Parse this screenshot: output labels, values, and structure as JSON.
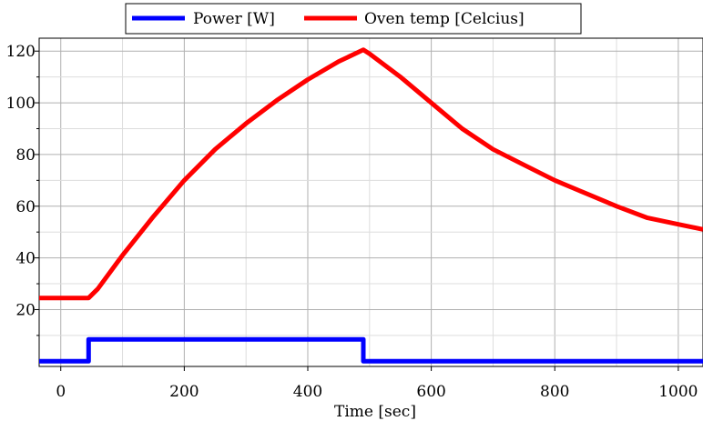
{
  "chart_data": {
    "type": "line",
    "title": "",
    "xlabel": "Time [sec]",
    "ylabel": "",
    "xlim": [
      -35,
      1040
    ],
    "ylim": [
      -2,
      125
    ],
    "xticks": [
      0,
      200,
      400,
      600,
      800,
      1000
    ],
    "yticks": [
      20,
      40,
      60,
      80,
      100,
      120
    ],
    "xtick_labels": [
      "0",
      "200",
      "400",
      "600",
      "800",
      "1000"
    ],
    "ytick_labels": [
      "20",
      "40",
      "60",
      "80",
      "100",
      "120"
    ],
    "grid": true,
    "legend_position": "top-center",
    "series": [
      {
        "name": "Power [W]",
        "color": "#0000ff",
        "x": [
          -35,
          45,
          45,
          490,
          490,
          1040
        ],
        "y": [
          0,
          0,
          8.5,
          8.5,
          0,
          0
        ]
      },
      {
        "name": "Oven temp [Celcius]",
        "color": "#ff0000",
        "x": [
          -35,
          45,
          60,
          100,
          150,
          200,
          250,
          300,
          350,
          400,
          450,
          490,
          500,
          550,
          600,
          650,
          700,
          750,
          800,
          850,
          900,
          950,
          1000,
          1040
        ],
        "y": [
          24.5,
          24.5,
          28,
          41,
          56,
          70,
          82,
          92,
          101,
          109,
          116,
          120.5,
          119,
          110,
          100,
          90,
          82,
          76,
          70,
          65,
          60,
          55.5,
          53,
          51
        ]
      }
    ]
  }
}
